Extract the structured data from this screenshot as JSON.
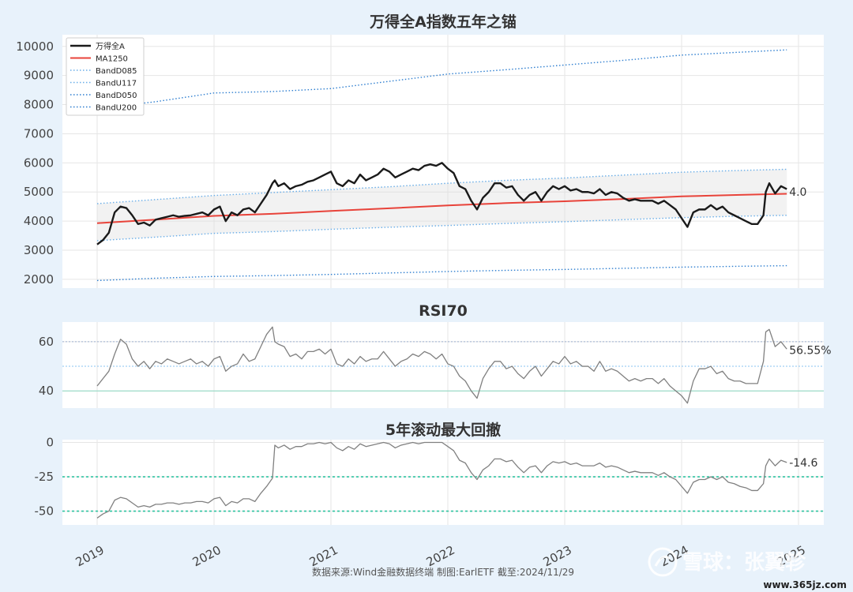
{
  "chart_data": [
    {
      "type": "line",
      "title": "万得全A指数五年之锚",
      "ylim": [
        1700,
        10400
      ],
      "y_ticks": [
        2000,
        3000,
        4000,
        5000,
        6000,
        7000,
        8000,
        9000,
        10000
      ],
      "legend_position": "top-left",
      "grid": true,
      "x_ticks": [
        "2019",
        "2020",
        "2021",
        "2022",
        "2023",
        "2024",
        "2025"
      ],
      "series": [
        {
          "name": "万得全A",
          "color": "#1a1a1a",
          "style": "solid",
          "x": [
            2019.0,
            2019.05,
            2019.1,
            2019.15,
            2019.2,
            2019.25,
            2019.3,
            2019.35,
            2019.4,
            2019.45,
            2019.5,
            2019.55,
            2019.6,
            2019.65,
            2019.7,
            2019.75,
            2019.8,
            2019.85,
            2019.9,
            2019.95,
            2020.0,
            2020.05,
            2020.1,
            2020.15,
            2020.2,
            2020.25,
            2020.3,
            2020.35,
            2020.4,
            2020.45,
            2020.5,
            2020.52,
            2020.55,
            2020.6,
            2020.65,
            2020.7,
            2020.75,
            2020.8,
            2020.85,
            2020.9,
            2020.95,
            2021.0,
            2021.05,
            2021.1,
            2021.15,
            2021.2,
            2021.25,
            2021.3,
            2021.35,
            2021.4,
            2021.45,
            2021.5,
            2021.55,
            2021.6,
            2021.65,
            2021.7,
            2021.75,
            2021.8,
            2021.85,
            2021.9,
            2021.95,
            2022.0,
            2022.05,
            2022.1,
            2022.15,
            2022.2,
            2022.25,
            2022.3,
            2022.35,
            2022.4,
            2022.45,
            2022.5,
            2022.55,
            2022.6,
            2022.65,
            2022.7,
            2022.75,
            2022.8,
            2022.85,
            2022.9,
            2022.95,
            2023.0,
            2023.05,
            2023.1,
            2023.15,
            2023.2,
            2023.25,
            2023.3,
            2023.35,
            2023.4,
            2023.45,
            2023.5,
            2023.55,
            2023.6,
            2023.65,
            2023.7,
            2023.75,
            2023.8,
            2023.85,
            2023.9,
            2023.95,
            2024.0,
            2024.05,
            2024.1,
            2024.15,
            2024.2,
            2024.25,
            2024.3,
            2024.35,
            2024.4,
            2024.45,
            2024.5,
            2024.55,
            2024.6,
            2024.65,
            2024.7,
            2024.72,
            2024.75,
            2024.8,
            2024.85,
            2024.9
          ],
          "y": [
            3200,
            3350,
            3600,
            4300,
            4500,
            4450,
            4200,
            3900,
            3950,
            3850,
            4050,
            4100,
            4150,
            4200,
            4150,
            4180,
            4200,
            4250,
            4300,
            4200,
            4400,
            4500,
            4000,
            4300,
            4200,
            4400,
            4450,
            4300,
            4600,
            4900,
            5300,
            5400,
            5200,
            5300,
            5100,
            5200,
            5250,
            5350,
            5400,
            5500,
            5600,
            5700,
            5300,
            5200,
            5400,
            5300,
            5600,
            5400,
            5500,
            5600,
            5800,
            5700,
            5500,
            5600,
            5700,
            5800,
            5750,
            5900,
            5950,
            5900,
            6000,
            5800,
            5650,
            5200,
            5100,
            4700,
            4400,
            4800,
            5000,
            5300,
            5300,
            5150,
            5200,
            4900,
            4700,
            4900,
            5000,
            4700,
            5000,
            5200,
            5100,
            5200,
            5050,
            5100,
            5000,
            5000,
            4950,
            5100,
            4900,
            5000,
            4950,
            4800,
            4700,
            4750,
            4700,
            4700,
            4700,
            4600,
            4700,
            4550,
            4400,
            4100,
            3800,
            4300,
            4400,
            4400,
            4550,
            4400,
            4500,
            4300,
            4200,
            4100,
            4000,
            3900,
            3900,
            4200,
            5000,
            5300,
            4950,
            5200,
            5100
          ]
        },
        {
          "name": "MA1250",
          "color": "#e8433a",
          "style": "solid",
          "x": [
            2019.0,
            2019.5,
            2020.0,
            2020.5,
            2021.0,
            2021.5,
            2022.0,
            2022.5,
            2023.0,
            2023.5,
            2024.0,
            2024.5,
            2024.9
          ],
          "y": [
            3930,
            4050,
            4180,
            4250,
            4350,
            4440,
            4540,
            4620,
            4680,
            4760,
            4850,
            4900,
            4940
          ]
        },
        {
          "name": "BandD085",
          "color": "#6aaee8",
          "style": "dotted",
          "x": [
            2019.0,
            2019.5,
            2020.0,
            2020.5,
            2021.0,
            2021.5,
            2022.0,
            2022.5,
            2023.0,
            2023.5,
            2024.0,
            2024.5,
            2024.9
          ],
          "y": [
            3330,
            3450,
            3580,
            3640,
            3720,
            3790,
            3850,
            3920,
            3980,
            4050,
            4120,
            4170,
            4200
          ]
        },
        {
          "name": "BandU117",
          "color": "#6aaee8",
          "style": "dotted",
          "x": [
            2019.0,
            2019.5,
            2020.0,
            2020.5,
            2021.0,
            2021.5,
            2022.0,
            2022.5,
            2023.0,
            2023.5,
            2024.0,
            2024.5,
            2024.9
          ],
          "y": [
            4600,
            4740,
            4880,
            4980,
            5080,
            5180,
            5300,
            5400,
            5480,
            5580,
            5680,
            5740,
            5780
          ]
        },
        {
          "name": "BandD050",
          "color": "#2f7fd0",
          "style": "dotted",
          "x": [
            2019.0,
            2019.5,
            2020.0,
            2020.5,
            2021.0,
            2021.5,
            2022.0,
            2022.5,
            2023.0,
            2023.5,
            2024.0,
            2024.5,
            2024.9
          ],
          "y": [
            1960,
            2040,
            2100,
            2130,
            2170,
            2220,
            2270,
            2310,
            2340,
            2380,
            2420,
            2450,
            2470
          ]
        },
        {
          "name": "BandU200",
          "color": "#2f7fd0",
          "style": "dotted",
          "x": [
            2019.0,
            2019.5,
            2020.0,
            2020.5,
            2021.0,
            2021.5,
            2022.0,
            2022.5,
            2023.0,
            2023.5,
            2024.0,
            2024.5,
            2024.9
          ],
          "y": [
            7860,
            8100,
            8400,
            8450,
            8550,
            8800,
            9050,
            9200,
            9360,
            9520,
            9700,
            9800,
            9880
          ]
        }
      ],
      "annotation": {
        "text": "4.0",
        "x": 2024.9,
        "y": 5000
      }
    },
    {
      "type": "line",
      "title": "RSI70",
      "ylim": [
        33,
        68
      ],
      "y_ticks": [
        40,
        60
      ],
      "ref_lines": [
        60,
        50,
        40
      ],
      "series": [
        {
          "name": "",
          "color": "#808080",
          "style": "solid",
          "x": [
            2019.0,
            2019.05,
            2019.1,
            2019.15,
            2019.2,
            2019.25,
            2019.3,
            2019.35,
            2019.4,
            2019.45,
            2019.5,
            2019.55,
            2019.6,
            2019.65,
            2019.7,
            2019.75,
            2019.8,
            2019.85,
            2019.9,
            2019.95,
            2020.0,
            2020.05,
            2020.1,
            2020.15,
            2020.2,
            2020.25,
            2020.3,
            2020.35,
            2020.4,
            2020.45,
            2020.5,
            2020.52,
            2020.55,
            2020.6,
            2020.65,
            2020.7,
            2020.75,
            2020.8,
            2020.85,
            2020.9,
            2020.95,
            2021.0,
            2021.05,
            2021.1,
            2021.15,
            2021.2,
            2021.25,
            2021.3,
            2021.35,
            2021.4,
            2021.45,
            2021.5,
            2021.55,
            2021.6,
            2021.65,
            2021.7,
            2021.75,
            2021.8,
            2021.85,
            2021.9,
            2021.95,
            2022.0,
            2022.05,
            2022.1,
            2022.15,
            2022.2,
            2022.25,
            2022.3,
            2022.35,
            2022.4,
            2022.45,
            2022.5,
            2022.55,
            2022.6,
            2022.65,
            2022.7,
            2022.75,
            2022.8,
            2022.85,
            2022.9,
            2022.95,
            2023.0,
            2023.05,
            2023.1,
            2023.15,
            2023.2,
            2023.25,
            2023.3,
            2023.35,
            2023.4,
            2023.45,
            2023.5,
            2023.55,
            2023.6,
            2023.65,
            2023.7,
            2023.75,
            2023.8,
            2023.85,
            2023.9,
            2023.95,
            2024.0,
            2024.05,
            2024.1,
            2024.15,
            2024.2,
            2024.25,
            2024.3,
            2024.35,
            2024.4,
            2024.45,
            2024.5,
            2024.55,
            2024.6,
            2024.65,
            2024.7,
            2024.72,
            2024.75,
            2024.8,
            2024.85,
            2024.9
          ],
          "y": [
            42,
            45,
            48,
            55,
            61,
            59,
            53,
            50,
            52,
            49,
            52,
            51,
            53,
            52,
            51,
            52,
            53,
            51,
            52,
            50,
            53,
            54,
            48,
            50,
            51,
            55,
            52,
            53,
            58,
            63,
            66,
            60,
            59,
            58,
            54,
            55,
            53,
            56,
            56,
            57,
            55,
            57,
            51,
            50,
            53,
            51,
            54,
            52,
            53,
            53,
            56,
            53,
            50,
            52,
            53,
            55,
            54,
            56,
            55,
            53,
            55,
            51,
            50,
            46,
            44,
            40,
            37,
            45,
            49,
            52,
            52,
            49,
            50,
            47,
            45,
            48,
            50,
            46,
            49,
            52,
            51,
            54,
            51,
            52,
            50,
            50,
            48,
            52,
            48,
            49,
            48,
            46,
            44,
            45,
            44,
            45,
            45,
            43,
            45,
            42,
            40,
            38,
            35,
            44,
            49,
            49,
            50,
            47,
            48,
            45,
            44,
            44,
            43,
            43,
            43,
            52,
            64,
            65,
            58,
            60,
            57
          ]
        }
      ],
      "annotation": {
        "text": "56.55%",
        "x": 2024.9,
        "y": 56.55
      }
    },
    {
      "type": "line",
      "title": "5年滚动最大回撤",
      "ylim": [
        -60,
        2
      ],
      "y_ticks": [
        0,
        -25,
        -50
      ],
      "ref_lines": [
        -25,
        -50
      ],
      "series": [
        {
          "name": "",
          "color": "#808080",
          "style": "solid",
          "x": [
            2019.0,
            2019.05,
            2019.1,
            2019.15,
            2019.2,
            2019.25,
            2019.3,
            2019.35,
            2019.4,
            2019.45,
            2019.5,
            2019.55,
            2019.6,
            2019.65,
            2019.7,
            2019.75,
            2019.8,
            2019.85,
            2019.9,
            2019.95,
            2020.0,
            2020.05,
            2020.1,
            2020.15,
            2020.2,
            2020.25,
            2020.3,
            2020.35,
            2020.4,
            2020.45,
            2020.5,
            2020.52,
            2020.55,
            2020.6,
            2020.65,
            2020.7,
            2020.75,
            2020.8,
            2020.85,
            2020.9,
            2020.95,
            2021.0,
            2021.05,
            2021.1,
            2021.15,
            2021.2,
            2021.25,
            2021.3,
            2021.35,
            2021.4,
            2021.45,
            2021.5,
            2021.55,
            2021.6,
            2021.65,
            2021.7,
            2021.75,
            2021.8,
            2021.85,
            2021.9,
            2021.95,
            2022.0,
            2022.05,
            2022.1,
            2022.15,
            2022.2,
            2022.25,
            2022.3,
            2022.35,
            2022.4,
            2022.45,
            2022.5,
            2022.55,
            2022.6,
            2022.65,
            2022.7,
            2022.75,
            2022.8,
            2022.85,
            2022.9,
            2022.95,
            2023.0,
            2023.05,
            2023.1,
            2023.15,
            2023.2,
            2023.25,
            2023.3,
            2023.35,
            2023.4,
            2023.45,
            2023.5,
            2023.55,
            2023.6,
            2023.65,
            2023.7,
            2023.75,
            2023.8,
            2023.85,
            2023.9,
            2023.95,
            2024.0,
            2024.05,
            2024.1,
            2024.15,
            2024.2,
            2024.25,
            2024.3,
            2024.35,
            2024.4,
            2024.45,
            2024.5,
            2024.55,
            2024.6,
            2024.65,
            2024.7,
            2024.72,
            2024.75,
            2024.8,
            2024.85,
            2024.9
          ],
          "y": [
            -55,
            -52,
            -50,
            -42,
            -40,
            -41,
            -44,
            -47,
            -46,
            -47,
            -45,
            -45,
            -44,
            -44,
            -45,
            -44,
            -44,
            -43,
            -43,
            -44,
            -41,
            -40,
            -46,
            -43,
            -44,
            -41,
            -41,
            -43,
            -37,
            -32,
            -26,
            -2,
            -4,
            -2,
            -5,
            -3,
            -3,
            -1,
            -1,
            0,
            -1,
            0,
            -4,
            -6,
            -3,
            -5,
            -1,
            -3,
            -2,
            -1,
            0,
            -1,
            -4,
            -2,
            -1,
            0,
            -1,
            0,
            0,
            0,
            0,
            -3,
            -6,
            -13,
            -15,
            -22,
            -27,
            -20,
            -17,
            -12,
            -12,
            -14,
            -13,
            -18,
            -22,
            -18,
            -17,
            -22,
            -17,
            -14,
            -15,
            -14,
            -16,
            -15,
            -17,
            -17,
            -17,
            -15,
            -18,
            -17,
            -18,
            -20,
            -22,
            -21,
            -22,
            -22,
            -22,
            -24,
            -22,
            -25,
            -27,
            -32,
            -37,
            -29,
            -27,
            -27,
            -25,
            -27,
            -25,
            -29,
            -30,
            -32,
            -33,
            -35,
            -35,
            -30,
            -17,
            -12,
            -17,
            -13,
            -14.6
          ]
        }
      ],
      "annotation": {
        "text": "-14.6",
        "x": 2024.9,
        "y": -14.6
      }
    }
  ],
  "footer": "数据来源:Wind金融数据终端  制图:EarlETF 截至:2024/11/29",
  "watermark": {
    "main": "雪球：张翼轸",
    "site": "www.365jz.com"
  }
}
